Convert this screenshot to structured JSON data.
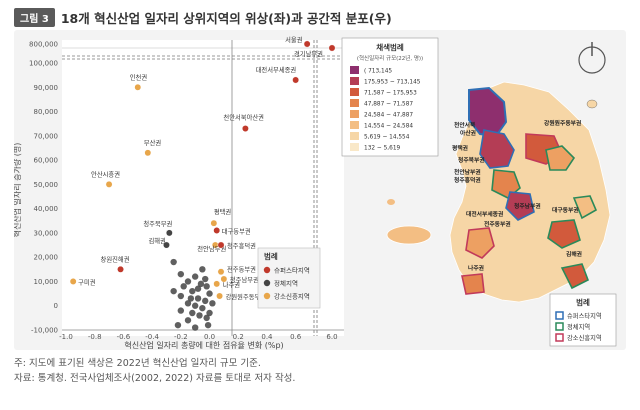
{
  "figure": {
    "tag": "그림 3",
    "title": "18개 혁신산업 일자리 상위지역의 위상(좌)과 공간적 분포(우)",
    "note": "주: 지도에 표기된 색상은 2022년 혁신산업 일자리 규모 기준.",
    "source": "자료: 통계청. 전국사업체조사(2002, 2022) 자료를 토대로 저자 작성."
  },
  "chart_data": [
    {
      "type": "scatter",
      "title": "",
      "xlabel": "혁신산업 일자리 총량에 대한 점유율 변화 (%p)",
      "ylabel": "혁신산업 일자리 증가량 (명)",
      "xlim": [
        -1.0,
        0.8
      ],
      "x_ticks": [
        "-1.0",
        "-0.8",
        "-0.6",
        "-0.4",
        "-0.2",
        "0.0",
        "0.2",
        "0.4",
        "0.6",
        "6.0"
      ],
      "y_ticks": [
        "800,000",
        "100,000",
        "90,000",
        "80,000",
        "70,000",
        "60,000",
        "50,000",
        "40,000",
        "30,000",
        "20,000",
        "10,000",
        "0",
        "-10,000"
      ],
      "axis_break": "y between 100,000 and 800,000; x between 0.7 and 6.0",
      "grid": false,
      "legend": {
        "title": "범례",
        "placement": "lower-right",
        "entries": [
          {
            "label": "슈퍼스타지역",
            "color": "#c0392b"
          },
          {
            "label": "정체지역",
            "color": "#444444"
          },
          {
            "label": "강소신흥지역",
            "color": "#e8a64a"
          }
        ]
      },
      "labeled_points": [
        {
          "label": "서울권",
          "x": 0.68,
          "y": 800000,
          "group": "슈퍼스타지역"
        },
        {
          "label": "경기남부권",
          "x": 6.0,
          "y": 790000,
          "group": "슈퍼스타지역"
        },
        {
          "label": "대전서부세종권",
          "x": 0.6,
          "y": 93000,
          "group": "슈퍼스타지역"
        },
        {
          "label": "인천권",
          "x": -0.5,
          "y": 90000,
          "group": "강소신흥지역"
        },
        {
          "label": "천안서북아산권",
          "x": 0.25,
          "y": 73000,
          "group": "슈퍼스타지역"
        },
        {
          "label": "부산권",
          "x": -0.43,
          "y": 63000,
          "group": "강소신흥지역"
        },
        {
          "label": "안산시흥권",
          "x": -0.7,
          "y": 50000,
          "group": "강소신흥지역"
        },
        {
          "label": "평택권",
          "x": 0.03,
          "y": 34000,
          "group": "강소신흥지역"
        },
        {
          "label": "청주북부권",
          "x": -0.28,
          "y": 30000,
          "group": "정체지역"
        },
        {
          "label": "대구동부권",
          "x": 0.05,
          "y": 31000,
          "group": "슈퍼스타지역"
        },
        {
          "label": "김해권",
          "x": -0.3,
          "y": 25000,
          "group": "정체지역"
        },
        {
          "label": "천안남부권",
          "x": 0.04,
          "y": 25000,
          "group": "강소신흥지역"
        },
        {
          "label": "창원진해권",
          "x": -0.62,
          "y": 15000,
          "group": "슈퍼스타지역"
        },
        {
          "label": "청주흥덕권",
          "x": 0.08,
          "y": 25000,
          "group": "슈퍼스타지역"
        },
        {
          "label": "전주동부권",
          "x": 0.08,
          "y": 14000,
          "group": "강소신흥지역"
        },
        {
          "label": "청주남부권",
          "x": 0.1,
          "y": 11000,
          "group": "강소신흥지역"
        },
        {
          "label": "구미권",
          "x": -0.95,
          "y": 10000,
          "group": "강소신흥지역"
        },
        {
          "label": "나주권",
          "x": 0.05,
          "y": 9000,
          "group": "강소신흥지역"
        },
        {
          "label": "강원원주동부권",
          "x": 0.07,
          "y": 4000,
          "group": "강소신흥지역"
        }
      ],
      "unlabeled_points": [
        {
          "x": -0.25,
          "y": 18000,
          "group": "정체지역"
        },
        {
          "x": -0.2,
          "y": 13000,
          "group": "정체지역"
        },
        {
          "x": -0.15,
          "y": 10000,
          "group": "정체지역"
        },
        {
          "x": -0.1,
          "y": 12000,
          "group": "정체지역"
        },
        {
          "x": -0.05,
          "y": 15000,
          "group": "정체지역"
        },
        {
          "x": -0.02,
          "y": 8000,
          "group": "정체지역"
        },
        {
          "x": -0.12,
          "y": 6000,
          "group": "정체지역"
        },
        {
          "x": -0.2,
          "y": 4000,
          "group": "정체지역"
        },
        {
          "x": -0.08,
          "y": 3000,
          "group": "정체지역"
        },
        {
          "x": -0.03,
          "y": 2000,
          "group": "정체지역"
        },
        {
          "x": -0.15,
          "y": 1000,
          "group": "정체지역"
        },
        {
          "x": -0.1,
          "y": 0,
          "group": "정체지역"
        },
        {
          "x": -0.05,
          "y": -1000,
          "group": "정체지역"
        },
        {
          "x": -0.2,
          "y": -2000,
          "group": "정체지역"
        },
        {
          "x": -0.12,
          "y": -3000,
          "group": "정체지역"
        },
        {
          "x": -0.07,
          "y": -4000,
          "group": "정체지역"
        },
        {
          "x": -0.02,
          "y": -5000,
          "group": "정체지역"
        },
        {
          "x": -0.15,
          "y": -6000,
          "group": "정체지역"
        },
        {
          "x": 0.0,
          "y": -3000,
          "group": "정체지역"
        },
        {
          "x": 0.02,
          "y": 1000,
          "group": "정체지역"
        },
        {
          "x": -0.25,
          "y": 6000,
          "group": "정체지역"
        },
        {
          "x": -0.18,
          "y": 8000,
          "group": "정체지역"
        },
        {
          "x": -0.08,
          "y": 7000,
          "group": "정체지역"
        },
        {
          "x": -0.03,
          "y": 11000,
          "group": "정체지역"
        },
        {
          "x": 0.0,
          "y": 5000,
          "group": "정체지역"
        },
        {
          "x": -0.22,
          "y": -8000,
          "group": "정체지역"
        },
        {
          "x": -0.1,
          "y": -9000,
          "group": "정체지역"
        },
        {
          "x": -0.06,
          "y": 9000,
          "group": "정체지역"
        },
        {
          "x": -0.13,
          "y": 3000,
          "group": "정체지역"
        },
        {
          "x": -0.01,
          "y": -8000,
          "group": "정체지역"
        }
      ]
    },
    {
      "type": "map",
      "legend": {
        "title": "채색범례",
        "subtitle": "(혁신일자리 규모(22년, 명))",
        "classes": [
          {
            "label": "( 713,145",
            "color": "#8e2f6e"
          },
          {
            "label": "175,953 ~ 713,145",
            "color": "#b43d55"
          },
          {
            "label": "71,587 ~ 175,953",
            "color": "#d25a3c"
          },
          {
            "label": "47,887 ~ 71,587",
            "color": "#e4844d"
          },
          {
            "label": "24,584 ~ 47,887",
            "color": "#eda062"
          },
          {
            "label": "14,554 ~ 24,584",
            "color": "#f3be83"
          },
          {
            "label": "5,619 ~ 14,554",
            "color": "#f6d6a6"
          },
          {
            "label": "132 ~ 5,619",
            "color": "#f9e8c8"
          }
        ]
      },
      "outline_legend": {
        "title": "범례",
        "entries": [
          {
            "label": "슈퍼스타지역",
            "color": "#2f6fb5"
          },
          {
            "label": "정체지역",
            "color": "#2a8a5a"
          },
          {
            "label": "강소신흥지역",
            "color": "#c23a5a"
          }
        ]
      },
      "region_labels": [
        "강원원주동부권",
        "천안서북",
        "아산권",
        "평택권",
        "청주북부권",
        "천안남부권",
        "청주흥덕권",
        "대전서부세종권",
        "청주남부권",
        "대구동부권",
        "전주동부권",
        "김해권",
        "나주권"
      ]
    }
  ]
}
